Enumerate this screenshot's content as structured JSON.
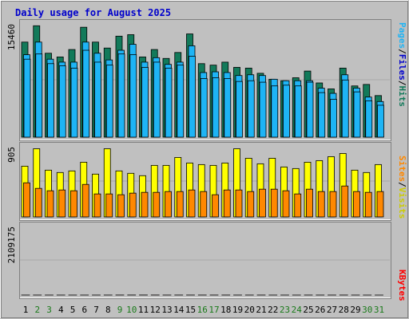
{
  "title": "Daily usage for August 2025",
  "colors": {
    "background": "#c0c0c0",
    "panel": "#c0c0c0",
    "title": "#0000cc",
    "hits": "#127a5a",
    "files": "#1eb4f5",
    "pages": "#1eb4f5",
    "visits": "#ffff00",
    "sites": "#ff8800",
    "kbytes": "#ff0000",
    "weekend_day": "#1a7a1a",
    "weekday": "#000000"
  },
  "legend": {
    "top": [
      {
        "text": "Pages",
        "color": "#1eb4f5"
      },
      {
        "text": "/",
        "color": "#000000"
      },
      {
        "text": "Files",
        "color": "#0000cc"
      },
      {
        "text": "/",
        "color": "#000000"
      },
      {
        "text": "Hits",
        "color": "#127a5a"
      }
    ],
    "middle": [
      {
        "text": "Sites",
        "color": "#ff8800"
      },
      {
        "text": "/",
        "color": "#000000"
      },
      {
        "text": "Visits",
        "color": "#cccc00"
      }
    ],
    "bottom": [
      {
        "text": "KBytes",
        "color": "#ff0000"
      }
    ]
  },
  "chart_data": [
    {
      "type": "bar",
      "panel": "top",
      "y_max_label": "15460",
      "ylim": [
        0,
        15460
      ],
      "categories": [
        "1",
        "2",
        "3",
        "4",
        "5",
        "6",
        "7",
        "8",
        "9",
        "10",
        "11",
        "12",
        "13",
        "14",
        "15",
        "16",
        "17",
        "18",
        "19",
        "20",
        "21",
        "22",
        "23",
        "24",
        "25",
        "26",
        "27",
        "28",
        "29",
        "30",
        "31"
      ],
      "series": [
        {
          "name": "Hits",
          "values": [
            12800,
            15000,
            11300,
            10800,
            11800,
            14800,
            12800,
            12000,
            13600,
            13800,
            10800,
            11800,
            10600,
            11400,
            13900,
            9900,
            9700,
            10100,
            9400,
            9300,
            8600,
            7800,
            7600,
            8000,
            8900,
            7300,
            6500,
            9300,
            6900,
            7100,
            5600
          ]
        },
        {
          "name": "Files",
          "values": [
            11100,
            12800,
            10500,
            10100,
            10100,
            12800,
            11300,
            10400,
            11700,
            12500,
            10100,
            10700,
            9800,
            10100,
            12300,
            8700,
            8800,
            8700,
            8300,
            8400,
            8300,
            7800,
            7600,
            7600,
            7600,
            6600,
            5900,
            8400,
            6600,
            5400,
            4800
          ]
        },
        {
          "name": "Pages",
          "values": [
            10500,
            11200,
            9900,
            9600,
            9300,
            11700,
            10100,
            9700,
            11200,
            11100,
            9400,
            10100,
            9300,
            9700,
            10900,
            7900,
            8000,
            7900,
            7500,
            7600,
            7400,
            6900,
            7000,
            6900,
            7400,
            6000,
            5100,
            7700,
            6100,
            4900,
            4300
          ]
        }
      ]
    },
    {
      "type": "bar",
      "panel": "middle",
      "y_max_label": "905",
      "ylim": [
        0,
        905
      ],
      "categories": [
        "1",
        "2",
        "3",
        "4",
        "5",
        "6",
        "7",
        "8",
        "9",
        "10",
        "11",
        "12",
        "13",
        "14",
        "15",
        "16",
        "17",
        "18",
        "19",
        "20",
        "21",
        "22",
        "23",
        "24",
        "25",
        "26",
        "27",
        "28",
        "29",
        "30",
        "31"
      ],
      "series": [
        {
          "name": "Visits",
          "values": [
            640,
            860,
            590,
            560,
            580,
            690,
            540,
            860,
            580,
            550,
            520,
            650,
            650,
            750,
            680,
            660,
            650,
            680,
            860,
            740,
            670,
            740,
            630,
            610,
            690,
            710,
            760,
            800,
            590,
            560,
            660
          ]
        },
        {
          "name": "Sites",
          "values": [
            430,
            360,
            330,
            340,
            330,
            410,
            290,
            290,
            280,
            300,
            310,
            310,
            320,
            320,
            340,
            320,
            280,
            340,
            340,
            320,
            350,
            350,
            330,
            290,
            350,
            320,
            320,
            390,
            320,
            310,
            320
          ]
        }
      ]
    },
    {
      "type": "bar",
      "panel": "bottom",
      "y_max_label": "2109175",
      "ylim": [
        0,
        2109175
      ],
      "categories": [
        "1",
        "2",
        "3",
        "4",
        "5",
        "6",
        "7",
        "8",
        "9",
        "10",
        "11",
        "12",
        "13",
        "14",
        "15",
        "16",
        "17",
        "18",
        "19",
        "20",
        "21",
        "22",
        "23",
        "24",
        "25",
        "26",
        "27",
        "28",
        "29",
        "30",
        "31"
      ],
      "series": [
        {
          "name": "KBytes",
          "values": [
            950,
            880,
            900,
            760,
            560,
            620,
            530,
            960,
            1910,
            2110,
            2050,
            1910,
            980,
            1470,
            1400,
            1230,
            1170,
            1170,
            1000,
            1090,
            1170,
            610,
            570,
            420,
            1090,
            950,
            880,
            1220,
            480,
            180,
            290
          ]
        }
      ]
    }
  ],
  "x_labels": [
    {
      "text": "1",
      "weekend": false
    },
    {
      "text": "2",
      "weekend": true
    },
    {
      "text": "3",
      "weekend": true
    },
    {
      "text": "4",
      "weekend": false
    },
    {
      "text": "5",
      "weekend": false
    },
    {
      "text": "6",
      "weekend": false
    },
    {
      "text": "7",
      "weekend": false
    },
    {
      "text": "8",
      "weekend": false
    },
    {
      "text": "9",
      "weekend": true
    },
    {
      "text": "10",
      "weekend": true
    },
    {
      "text": "11",
      "weekend": false
    },
    {
      "text": "12",
      "weekend": false
    },
    {
      "text": "13",
      "weekend": false
    },
    {
      "text": "14",
      "weekend": false
    },
    {
      "text": "15",
      "weekend": false
    },
    {
      "text": "16",
      "weekend": true
    },
    {
      "text": "17",
      "weekend": true
    },
    {
      "text": "18",
      "weekend": false
    },
    {
      "text": "19",
      "weekend": false
    },
    {
      "text": "20",
      "weekend": false
    },
    {
      "text": "21",
      "weekend": false
    },
    {
      "text": "22",
      "weekend": false
    },
    {
      "text": "23",
      "weekend": true
    },
    {
      "text": "24",
      "weekend": true
    },
    {
      "text": "25",
      "weekend": false
    },
    {
      "text": "26",
      "weekend": false
    },
    {
      "text": "27",
      "weekend": false
    },
    {
      "text": "28",
      "weekend": false
    },
    {
      "text": "29",
      "weekend": false
    },
    {
      "text": "30",
      "weekend": true
    },
    {
      "text": "31",
      "weekend": true
    }
  ]
}
